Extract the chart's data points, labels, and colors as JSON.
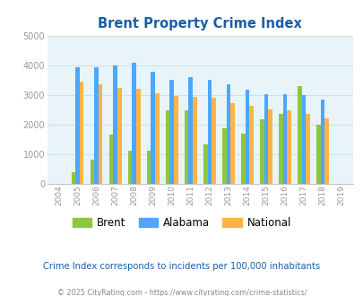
{
  "title": "Brent Property Crime Index",
  "years": [
    2004,
    2005,
    2006,
    2007,
    2008,
    2009,
    2010,
    2011,
    2012,
    2013,
    2014,
    2015,
    2016,
    2017,
    2018,
    2019
  ],
  "brent": [
    null,
    390,
    820,
    1650,
    1100,
    1100,
    2470,
    2460,
    1310,
    1870,
    1680,
    2160,
    2340,
    3300,
    2000,
    null
  ],
  "alabama": [
    null,
    3920,
    3940,
    3980,
    4080,
    3770,
    3500,
    3600,
    3500,
    3340,
    3180,
    3020,
    3010,
    2990,
    2840,
    null
  ],
  "national": [
    null,
    3430,
    3340,
    3230,
    3200,
    3050,
    2960,
    2940,
    2900,
    2730,
    2610,
    2510,
    2470,
    2360,
    2200,
    null
  ],
  "bar_colors": {
    "brent": "#8dc63f",
    "alabama": "#4da6ff",
    "national": "#ffb347"
  },
  "bg_color": "#e8f4f8",
  "plot_bg": "#e8f4f8",
  "ylim": [
    0,
    5000
  ],
  "yticks": [
    0,
    1000,
    2000,
    3000,
    4000,
    5000
  ],
  "subtitle": "Crime Index corresponds to incidents per 100,000 inhabitants",
  "footer": "© 2025 CityRating.com - https://www.cityrating.com/crime-statistics/",
  "title_color": "#1a5fa8",
  "subtitle_color": "#1a5fa8",
  "footer_color": "#888888",
  "grid_color": "#c8dde8",
  "tick_color": "#999999"
}
